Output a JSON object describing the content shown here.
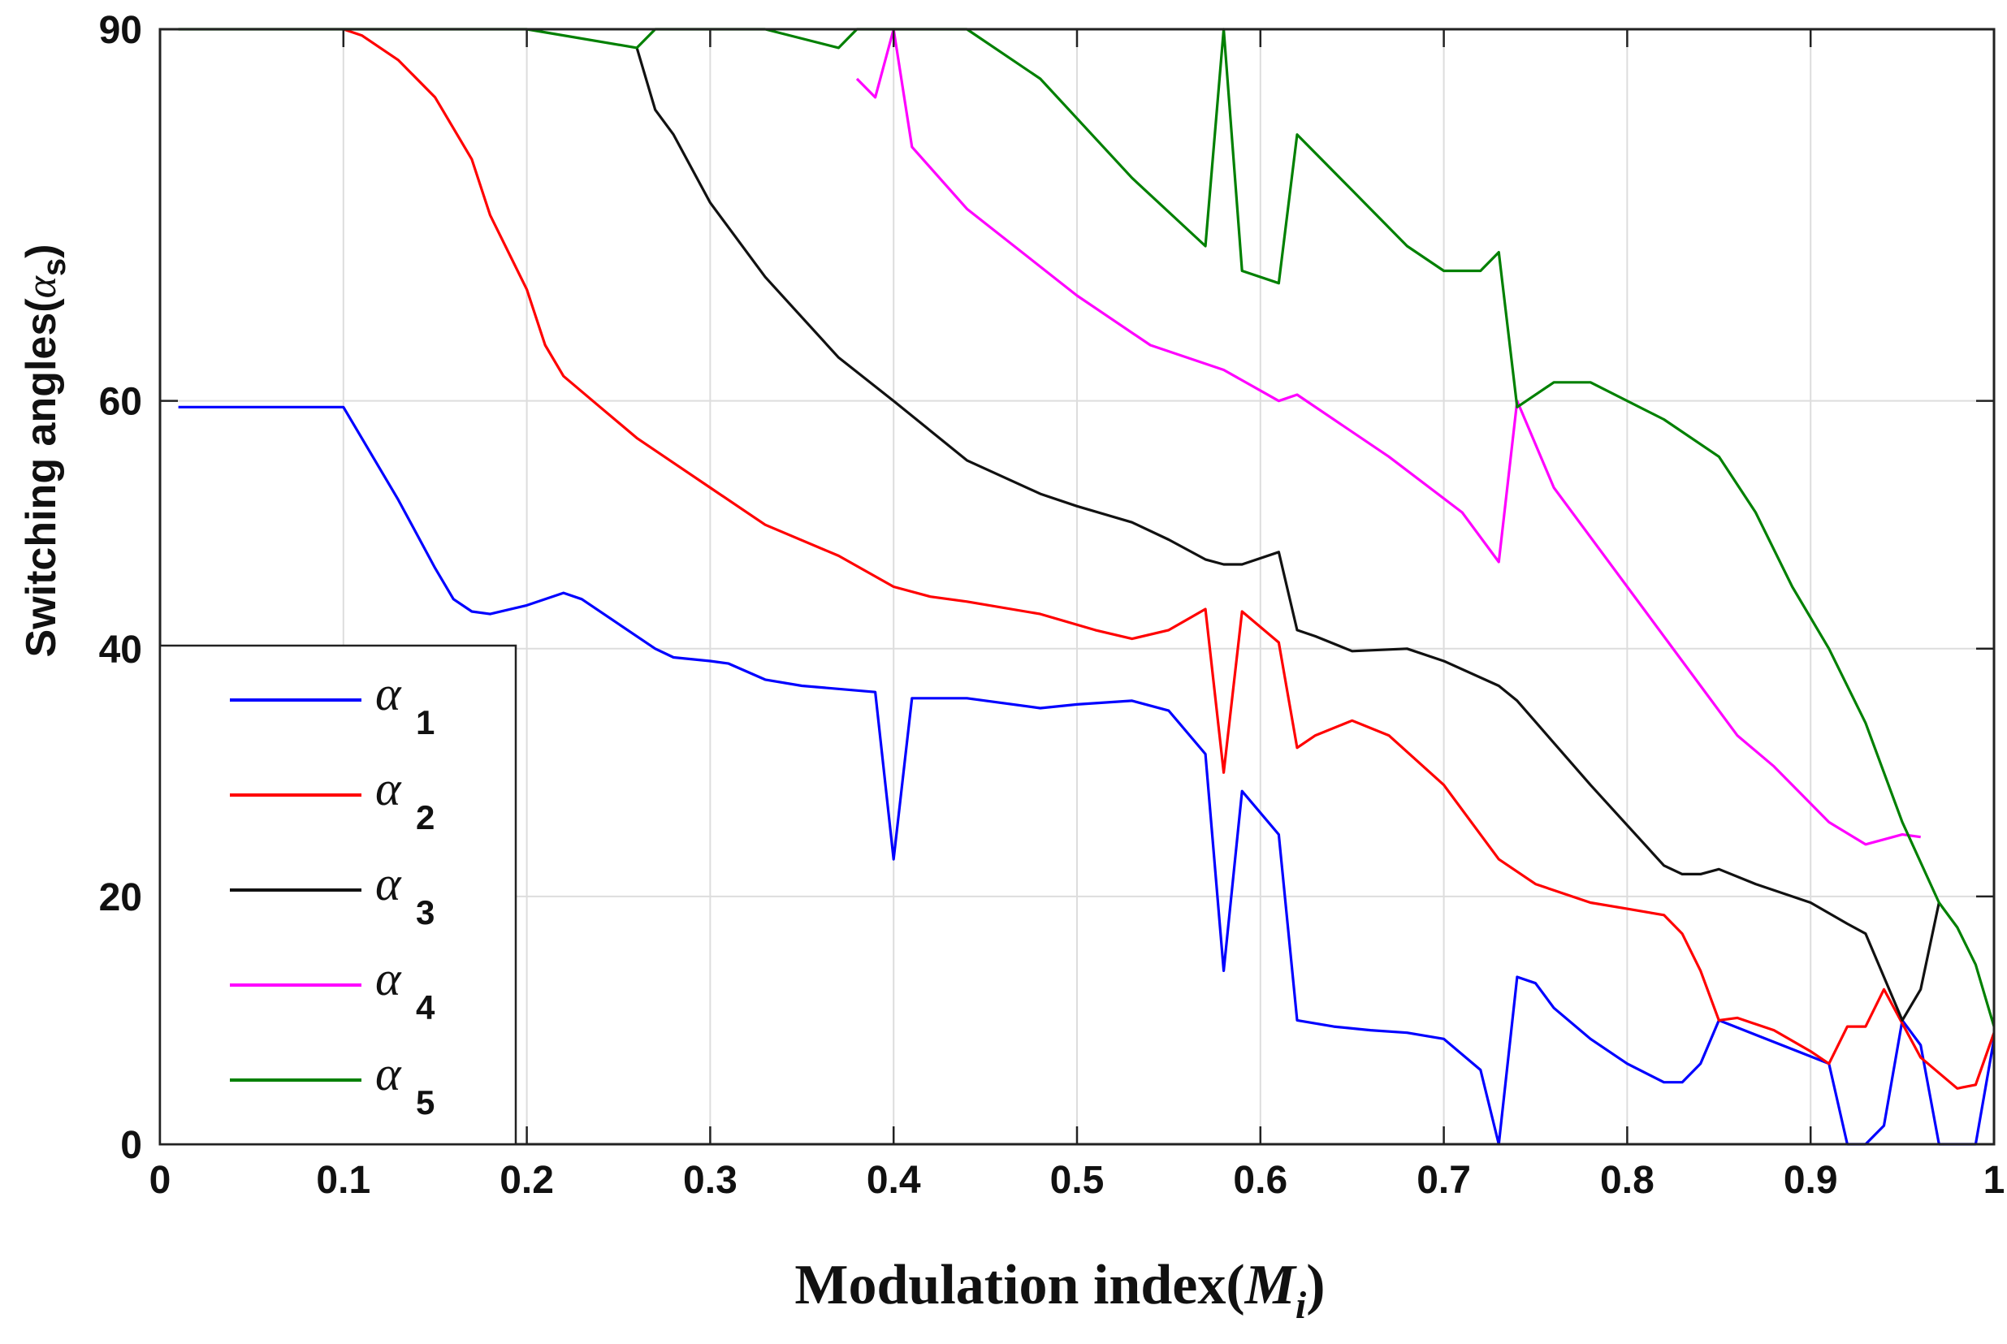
{
  "chart_data": {
    "type": "line",
    "title": "",
    "xlabel": "Modulation index(",
    "xlabel_symbol": "M",
    "xlabel_subscript": "i",
    "xlabel_close": ")",
    "ylabel": "Switching angles(",
    "ylabel_symbol": "α",
    "ylabel_subscript": "s",
    "ylabel_close": ")",
    "xlim": [
      0,
      1
    ],
    "ylim": [
      0,
      90
    ],
    "xticks": [
      0,
      0.1,
      0.2,
      0.3,
      0.4,
      0.5,
      0.6,
      0.7,
      0.8,
      0.9,
      1
    ],
    "xtick_labels": [
      "0",
      "0.1",
      "0.2",
      "0.3",
      "0.4",
      "0.5",
      "0.6",
      "0.7",
      "0.8",
      "0.9",
      "1"
    ],
    "yticks": [
      0,
      20,
      40,
      60,
      90
    ],
    "ytick_labels": [
      "0",
      "20",
      "40",
      "60",
      "90"
    ],
    "grid": true,
    "legend_position": "bottom-left",
    "series": [
      {
        "name": "α1",
        "symbol": "α",
        "subscript": "1",
        "color": "#0000ff",
        "x": [
          0.01,
          0.1,
          0.11,
          0.13,
          0.15,
          0.16,
          0.17,
          0.18,
          0.2,
          0.22,
          0.23,
          0.25,
          0.27,
          0.28,
          0.3,
          0.31,
          0.33,
          0.35,
          0.39,
          0.4,
          0.41,
          0.44,
          0.48,
          0.5,
          0.53,
          0.55,
          0.57,
          0.58,
          0.59,
          0.61,
          0.62,
          0.64,
          0.66,
          0.68,
          0.7,
          0.72,
          0.73,
          0.74,
          0.75,
          0.76,
          0.78,
          0.8,
          0.82,
          0.83,
          0.84,
          0.85,
          0.91,
          0.92,
          0.93,
          0.94,
          0.95,
          0.96,
          0.97,
          0.99,
          1.0
        ],
        "y": [
          59.5,
          59.5,
          57,
          52,
          46.5,
          44,
          43,
          42.8,
          43.5,
          44.5,
          44,
          42,
          40,
          39.3,
          39,
          38.8,
          37.5,
          37,
          36.5,
          23,
          36,
          36,
          35.2,
          35.5,
          35.8,
          35,
          31.5,
          14,
          28.5,
          25,
          10,
          9.5,
          9.2,
          9,
          8.5,
          6,
          0,
          13.5,
          13,
          11,
          8.5,
          6.5,
          5,
          5,
          6.5,
          10,
          6.5,
          0,
          0,
          1.5,
          10,
          8,
          0,
          0,
          8.5
        ]
      },
      {
        "name": "α2",
        "symbol": "α",
        "subscript": "2",
        "color": "#ff0000",
        "x": [
          0.1,
          0.11,
          0.13,
          0.15,
          0.17,
          0.18,
          0.2,
          0.21,
          0.22,
          0.24,
          0.26,
          0.28,
          0.3,
          0.33,
          0.37,
          0.4,
          0.42,
          0.44,
          0.48,
          0.51,
          0.53,
          0.55,
          0.57,
          0.58,
          0.59,
          0.61,
          0.62,
          0.63,
          0.65,
          0.67,
          0.7,
          0.73,
          0.75,
          0.78,
          0.8,
          0.82,
          0.83,
          0.84,
          0.85,
          0.86,
          0.88,
          0.9,
          0.91,
          0.92,
          0.93,
          0.94,
          0.96,
          0.98,
          0.99,
          1.0
        ],
        "y": [
          90,
          89.5,
          87.5,
          84.5,
          79.5,
          75,
          69,
          64.5,
          62,
          59.5,
          57,
          55,
          53,
          50,
          47.5,
          45,
          44.2,
          43.8,
          42.8,
          41.5,
          40.8,
          41.5,
          43.2,
          30,
          43,
          40.5,
          32,
          33,
          34.2,
          33,
          29,
          23,
          21,
          19.5,
          19,
          18.5,
          17,
          14,
          10,
          10.2,
          9.2,
          7.5,
          6.5,
          9.5,
          9.5,
          12.5,
          7,
          4.5,
          4.8,
          9
        ]
      },
      {
        "name": "α3",
        "symbol": "α",
        "subscript": "3",
        "color": "#111111",
        "x": [
          0.26,
          0.27,
          0.28,
          0.3,
          0.33,
          0.37,
          0.4,
          0.44,
          0.48,
          0.5,
          0.53,
          0.55,
          0.57,
          0.58,
          0.59,
          0.61,
          0.62,
          0.63,
          0.65,
          0.68,
          0.7,
          0.73,
          0.74,
          0.78,
          0.82,
          0.83,
          0.84,
          0.85,
          0.87,
          0.9,
          0.92,
          0.93,
          0.95,
          0.96,
          0.97
        ],
        "y": [
          88.5,
          83.5,
          81.5,
          76,
          70,
          63.5,
          60,
          55.2,
          52.5,
          51.5,
          50.2,
          48.8,
          47.2,
          46.8,
          46.8,
          47.8,
          41.5,
          41,
          39.8,
          40,
          39,
          37,
          35.8,
          29,
          22.5,
          21.8,
          21.8,
          22.2,
          21,
          19.5,
          17.8,
          17,
          10,
          12.5,
          19.5
        ]
      },
      {
        "name": "α4",
        "symbol": "α",
        "subscript": "4",
        "color": "#ff00ff",
        "x": [
          0.38,
          0.39,
          0.4,
          0.41,
          0.44,
          0.5,
          0.54,
          0.58,
          0.61,
          0.62,
          0.67,
          0.71,
          0.73,
          0.74,
          0.76,
          0.8,
          0.84,
          0.86,
          0.88,
          0.91,
          0.93,
          0.95,
          0.96
        ],
        "y": [
          86,
          84.5,
          90,
          80.5,
          75.5,
          68.5,
          64.5,
          62.5,
          60,
          60.5,
          55.5,
          51,
          47,
          60,
          53,
          45,
          37,
          33,
          30.5,
          26,
          24.2,
          25,
          24.8
        ]
      },
      {
        "name": "α5",
        "symbol": "α",
        "subscript": "5",
        "color": "#008000",
        "x": [
          0.01,
          0.2,
          0.26,
          0.27,
          0.33,
          0.37,
          0.38,
          0.44,
          0.48,
          0.53,
          0.57,
          0.58,
          0.59,
          0.61,
          0.62,
          0.65,
          0.68,
          0.7,
          0.72,
          0.73,
          0.74,
          0.76,
          0.78,
          0.82,
          0.85,
          0.87,
          0.89,
          0.91,
          0.93,
          0.95,
          0.97,
          0.98,
          0.99,
          1.0
        ],
        "y": [
          90,
          90,
          88.5,
          90,
          90,
          88.5,
          90,
          90,
          86,
          78,
          72.5,
          90,
          70.5,
          69.5,
          81.5,
          77,
          72.5,
          70.5,
          70.5,
          72,
          59.5,
          61.5,
          61.5,
          58.5,
          55.5,
          51,
          45,
          40,
          34,
          26,
          19.5,
          17.5,
          14.5,
          9.5
        ]
      }
    ]
  }
}
